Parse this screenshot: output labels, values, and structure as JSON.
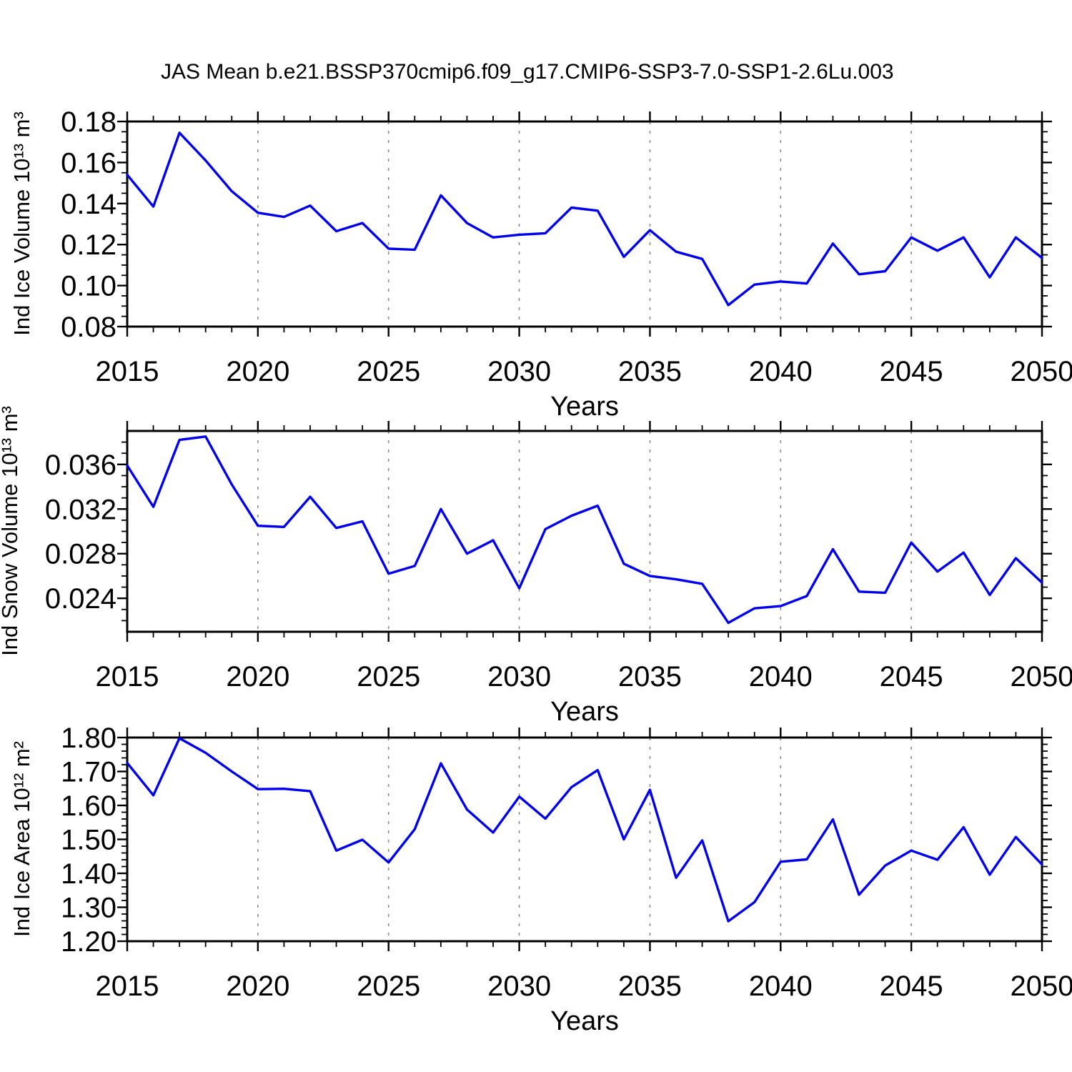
{
  "title": "JAS Mean b.e21.BSSP370cmip6.f09_g17.CMIP6-SSP3-7.0-SSP1-2.6Lu.003",
  "xlabel": "Years",
  "line_color": "#0000ee",
  "grid_years": [
    2020,
    2025,
    2030,
    2035,
    2040,
    2045
  ],
  "x_tick_labels": [
    "2015",
    "2020",
    "2025",
    "2030",
    "2035",
    "2040",
    "2045",
    "2050"
  ],
  "chart_data": [
    {
      "type": "line",
      "ylabel": "Ind Ice Volume 10¹³ m³",
      "xlabel": "Years",
      "x": [
        2015,
        2016,
        2017,
        2018,
        2019,
        2020,
        2021,
        2022,
        2023,
        2024,
        2025,
        2026,
        2027,
        2028,
        2029,
        2030,
        2031,
        2032,
        2033,
        2034,
        2035,
        2036,
        2037,
        2038,
        2039,
        2040,
        2041,
        2042,
        2043,
        2044,
        2045,
        2046,
        2047,
        2048,
        2049,
        2050
      ],
      "series": [
        {
          "name": "ice-volume",
          "values": [
            0.154,
            0.1385,
            0.1745,
            0.161,
            0.146,
            0.1355,
            0.1335,
            0.139,
            0.1265,
            0.1305,
            0.118,
            0.1175,
            0.144,
            0.1305,
            0.1235,
            0.1248,
            0.1255,
            0.138,
            0.1365,
            0.114,
            0.127,
            0.1165,
            0.113,
            0.0905,
            0.1005,
            0.102,
            0.101,
            0.1205,
            0.1055,
            0.107,
            0.1235,
            0.117,
            0.1235,
            0.104,
            0.1235,
            0.1135
          ]
        }
      ],
      "ylim": [
        0.08,
        0.18
      ],
      "ytick_values": [
        0.18,
        0.16,
        0.14,
        0.12,
        0.1,
        0.08
      ],
      "ytick_labels": [
        "0.18",
        "0.16",
        "0.14",
        "0.12",
        "0.10",
        "0.08"
      ],
      "ytick_minor_step": 0.005,
      "xlim": [
        2015,
        2050
      ],
      "grid": "vertical-dashed",
      "legend": "none"
    },
    {
      "type": "line",
      "ylabel": "Ind Snow Volume 10¹³ m³",
      "xlabel": "Years",
      "x": [
        2015,
        2016,
        2017,
        2018,
        2019,
        2020,
        2021,
        2022,
        2023,
        2024,
        2025,
        2026,
        2027,
        2028,
        2029,
        2030,
        2031,
        2032,
        2033,
        2034,
        2035,
        2036,
        2037,
        2038,
        2039,
        2040,
        2041,
        2042,
        2043,
        2044,
        2045,
        2046,
        2047,
        2048,
        2049,
        2050
      ],
      "series": [
        {
          "name": "snow-volume",
          "values": [
            0.0359,
            0.0322,
            0.0382,
            0.0385,
            0.0342,
            0.0305,
            0.0304,
            0.0331,
            0.0303,
            0.0309,
            0.0262,
            0.0269,
            0.032,
            0.028,
            0.0292,
            0.0249,
            0.0302,
            0.0314,
            0.0323,
            0.0271,
            0.026,
            0.0257,
            0.0253,
            0.0218,
            0.0231,
            0.0233,
            0.0242,
            0.0284,
            0.0246,
            0.0245,
            0.029,
            0.0264,
            0.0281,
            0.0243,
            0.0276,
            0.0254
          ]
        }
      ],
      "ylim": [
        0.021,
        0.039
      ],
      "ytick_values": [
        0.036,
        0.032,
        0.028,
        0.024
      ],
      "ytick_labels": [
        "0.036",
        "0.032",
        "0.028",
        "0.024"
      ],
      "ytick_minor_step": 0.001,
      "xlim": [
        2015,
        2050
      ],
      "grid": "vertical-dashed",
      "legend": "none"
    },
    {
      "type": "line",
      "ylabel": "Ind Ice Area 10¹² m²",
      "xlabel": "Years",
      "x": [
        2015,
        2016,
        2017,
        2018,
        2019,
        2020,
        2021,
        2022,
        2023,
        2024,
        2025,
        2026,
        2027,
        2028,
        2029,
        2030,
        2031,
        2032,
        2033,
        2034,
        2035,
        2036,
        2037,
        2038,
        2039,
        2040,
        2041,
        2042,
        2043,
        2044,
        2045,
        2046,
        2047,
        2048,
        2049,
        2050
      ],
      "series": [
        {
          "name": "ice-area",
          "values": [
            1.725,
            1.63,
            1.798,
            1.755,
            1.7,
            1.648,
            1.649,
            1.642,
            1.467,
            1.499,
            1.432,
            1.53,
            1.724,
            1.588,
            1.52,
            1.626,
            1.561,
            1.654,
            1.704,
            1.5,
            1.646,
            1.387,
            1.497,
            1.259,
            1.315,
            1.434,
            1.441,
            1.559,
            1.337,
            1.423,
            1.467,
            1.44,
            1.536,
            1.396,
            1.507,
            1.426
          ]
        }
      ],
      "ylim": [
        1.2,
        1.8
      ],
      "ytick_values": [
        1.8,
        1.7,
        1.6,
        1.5,
        1.4,
        1.3,
        1.2
      ],
      "ytick_labels": [
        "1.80",
        "1.70",
        "1.60",
        "1.50",
        "1.40",
        "1.30",
        "1.20"
      ],
      "ytick_minor_step": 0.02,
      "xlim": [
        2015,
        2050
      ],
      "grid": "vertical-dashed",
      "legend": "none"
    }
  ]
}
